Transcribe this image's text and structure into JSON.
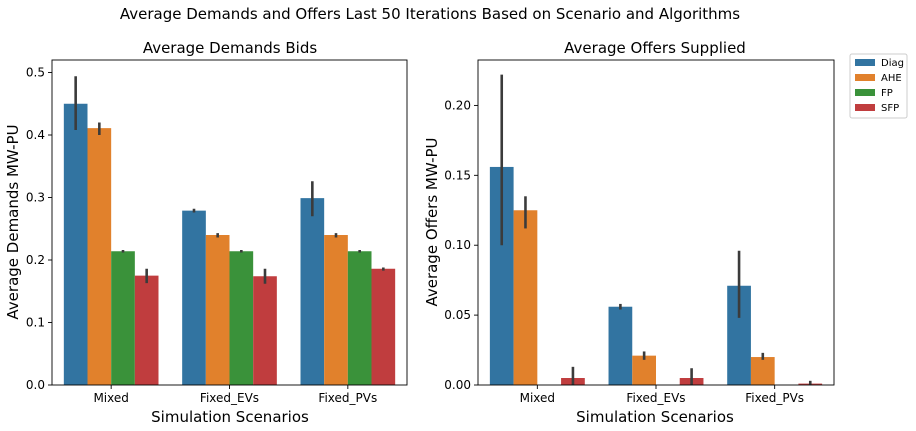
{
  "figure": {
    "suptitle": "Average Demands and Offers Last 50 Iterations Based on Scenario and Algorithms"
  },
  "legend": {
    "placement": "outside-top-right",
    "entries": [
      "Diag",
      "AHE",
      "FP",
      "SFP"
    ]
  },
  "colors": {
    "Diag": "#3274a1",
    "AHE": "#e1812c",
    "FP": "#3a923a",
    "SFP": "#c03d3e",
    "error_bar": "#3b3b3b"
  },
  "chart_data": [
    {
      "type": "bar",
      "title": "Average Demands Bids",
      "xlabel": "Simulation Scenarios",
      "ylabel": "Average Demands MW-PU",
      "categories": [
        "Mixed",
        "Fixed_EVs",
        "Fixed_PVs"
      ],
      "ylim": [
        0,
        0.52
      ],
      "yticks": [
        0.0,
        0.1,
        0.2,
        0.3,
        0.4,
        0.5
      ],
      "ytick_labels": [
        "0.0",
        "0.1",
        "0.2",
        "0.3",
        "0.4",
        "0.5"
      ],
      "grid": false,
      "series": [
        {
          "name": "Diag",
          "values": [
            0.45,
            0.279,
            0.299
          ],
          "err_low": [
            0.408,
            0.276,
            0.27
          ],
          "err_high": [
            0.494,
            0.282,
            0.326
          ]
        },
        {
          "name": "AHE",
          "values": [
            0.411,
            0.24,
            0.24
          ],
          "err_low": [
            0.4,
            0.236,
            0.236
          ],
          "err_high": [
            0.42,
            0.243,
            0.243
          ]
        },
        {
          "name": "FP",
          "values": [
            0.214,
            0.214,
            0.214
          ],
          "err_low": [
            0.212,
            0.212,
            0.212
          ],
          "err_high": [
            0.216,
            0.216,
            0.216
          ]
        },
        {
          "name": "SFP",
          "values": [
            0.175,
            0.174,
            0.186
          ],
          "err_low": [
            0.163,
            0.162,
            0.183
          ],
          "err_high": [
            0.186,
            0.186,
            0.188
          ]
        }
      ]
    },
    {
      "type": "bar",
      "title": "Average Offers Supplied",
      "xlabel": "Simulation Scenarios",
      "ylabel": "Average Offers MW-PU",
      "categories": [
        "Mixed",
        "Fixed_EVs",
        "Fixed_PVs"
      ],
      "ylim": [
        0,
        0.2325
      ],
      "yticks": [
        0.0,
        0.05,
        0.1,
        0.15,
        0.2
      ],
      "ytick_labels": [
        "0.00",
        "0.05",
        "0.10",
        "0.15",
        "0.20"
      ],
      "grid": false,
      "series": [
        {
          "name": "Diag",
          "values": [
            0.156,
            0.056,
            0.071
          ],
          "err_low": [
            0.1,
            0.054,
            0.048
          ],
          "err_high": [
            0.222,
            0.058,
            0.096
          ]
        },
        {
          "name": "AHE",
          "values": [
            0.125,
            0.021,
            0.02
          ],
          "err_low": [
            0.112,
            0.018,
            0.018
          ],
          "err_high": [
            0.135,
            0.024,
            0.023
          ]
        },
        {
          "name": "FP",
          "values": [
            0.0,
            0.0,
            0.0
          ],
          "err_low": [
            0.0,
            0.0,
            0.0
          ],
          "err_high": [
            0.0,
            0.0,
            0.0
          ]
        },
        {
          "name": "SFP",
          "values": [
            0.005,
            0.005,
            0.001
          ],
          "err_low": [
            0.0,
            0.0,
            0.0
          ],
          "err_high": [
            0.013,
            0.012,
            0.003
          ]
        }
      ]
    }
  ]
}
